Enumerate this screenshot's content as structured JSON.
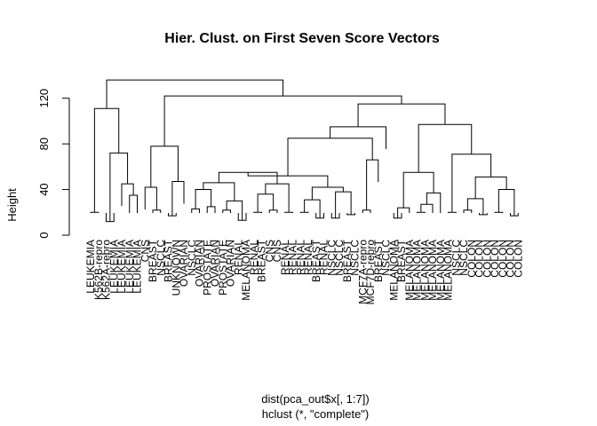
{
  "chart_data": {
    "type": "dendrogram",
    "title": "Hier. Clust. on First Seven Score Vectors",
    "ylabel": "Height",
    "xlabel_lines": [
      "dist(pca_out$x[, 1:7])",
      "hclust (*, \"complete\")"
    ],
    "ylim": [
      0,
      140
    ],
    "y_ticks": [
      0,
      40,
      80,
      120
    ],
    "leaves": [
      "LEUKEMIA",
      "K562B-repro",
      "K562A-repro",
      "LEUKEMIA",
      "LEUKEMIA",
      "LEUKEMIA",
      "LEUKEMIA",
      "CNS",
      "BREAST",
      "NSCLC",
      "BREAST",
      "UNKNOWN",
      "OVARIAN",
      "NSCLC",
      "OVARIAN",
      "PROSTATE",
      "OVARIAN",
      "PROSTATE",
      "OVARIAN",
      "RENAL",
      "MELANOMA",
      "RENAL",
      "BREAST",
      "CNS",
      "CNS",
      "RENAL",
      "RENAL",
      "RENAL",
      "RENAL",
      "BREAST",
      "RENAL",
      "NSCLC",
      "NSCLC",
      "BREAST",
      "NSCLC",
      "MCF7A-repro",
      "MCF7D-repro",
      "BREAST",
      "NSCLC",
      "MELANOMA",
      "BREAST",
      "MELANOMA",
      "MELANOMA",
      "MELANOMA",
      "MELANOMA",
      "MELANOMA",
      "MELANOMA",
      "NSCLC",
      "NSCLC",
      "COLON",
      "COLON",
      "COLON",
      "COLON",
      "COLON",
      "COLON",
      "COLON"
    ],
    "merges": [
      {
        "a": {
          "leaf": 0
        },
        "b": {
          "leaf": 1
        },
        "h": 20
      },
      {
        "a": {
          "leaf": 2
        },
        "b": {
          "leaf": 3
        },
        "h": 12
      },
      {
        "a": {
          "leaf": 5
        },
        "b": {
          "leaf": 6
        },
        "h": 35
      },
      {
        "a": {
          "leaf": 4
        },
        "b": {
          "node": 2
        },
        "h": 45
      },
      {
        "a": {
          "node": 1
        },
        "b": {
          "node": 3
        },
        "h": 72
      },
      {
        "a": {
          "node": 0
        },
        "b": {
          "node": 4
        },
        "h": 111
      },
      {
        "a": {
          "leaf": 8
        },
        "b": {
          "leaf": 9
        },
        "h": 22
      },
      {
        "a": {
          "leaf": 7
        },
        "b": {
          "node": 6
        },
        "h": 42
      },
      {
        "a": {
          "leaf": 10
        },
        "b": {
          "leaf": 11
        },
        "h": 17
      },
      {
        "a": {
          "leaf": 12
        },
        "b": {
          "node": 8
        },
        "h": 47
      },
      {
        "a": {
          "node": 7
        },
        "b": {
          "node": 9
        },
        "h": 78
      },
      {
        "a": {
          "leaf": 13
        },
        "b": {
          "leaf": 14
        },
        "h": 23
      },
      {
        "a": {
          "leaf": 15
        },
        "b": {
          "leaf": 16
        },
        "h": 25
      },
      {
        "a": {
          "node": 11
        },
        "b": {
          "node": 12
        },
        "h": 40
      },
      {
        "a": {
          "leaf": 17
        },
        "b": {
          "leaf": 18
        },
        "h": 22
      },
      {
        "a": {
          "leaf": 19
        },
        "b": {
          "leaf": 20
        },
        "h": 13
      },
      {
        "a": {
          "node": 14
        },
        "b": {
          "node": 15
        },
        "h": 30
      },
      {
        "a": {
          "node": 13
        },
        "b": {
          "node": 16
        },
        "h": 46
      },
      {
        "a": {
          "leaf": 21
        },
        "b": {
          "leaf": 22
        },
        "h": 20
      },
      {
        "a": {
          "leaf": 23
        },
        "b": {
          "leaf": 24
        },
        "h": 22
      },
      {
        "a": {
          "node": 18
        },
        "b": {
          "node": 19
        },
        "h": 36
      },
      {
        "a": {
          "leaf": 25
        },
        "b": {
          "leaf": 26
        },
        "h": 20
      },
      {
        "a": {
          "node": 20
        },
        "b": {
          "node": 21
        },
        "h": 45
      },
      {
        "a": {
          "node": 17
        },
        "b": {
          "node": 22
        },
        "h": 55
      },
      {
        "a": {
          "leaf": 27
        },
        "b": {
          "leaf": 28
        },
        "h": 20
      },
      {
        "a": {
          "leaf": 29
        },
        "b": {
          "leaf": 30
        },
        "h": 15
      },
      {
        "a": {
          "node": 24
        },
        "b": {
          "node": 25
        },
        "h": 31
      },
      {
        "a": {
          "leaf": 31
        },
        "b": {
          "leaf": 32
        },
        "h": 15
      },
      {
        "a": {
          "leaf": 33
        },
        "b": {
          "leaf": 34
        },
        "h": 18
      },
      {
        "a": {
          "node": 27
        },
        "b": {
          "node": 28
        },
        "h": 38
      },
      {
        "a": {
          "node": 26
        },
        "b": {
          "node": 29
        },
        "h": 42
      },
      {
        "a": {
          "node": 23
        },
        "b": {
          "node": 30
        },
        "h": 52
      },
      {
        "a": {
          "leaf": 35
        },
        "b": {
          "leaf": 36
        },
        "h": 22
      },
      {
        "a": {
          "leaf": 37
        },
        "b": {
          "node": 32
        },
        "h": 66
      },
      {
        "a": {
          "node": 31
        },
        "b": {
          "node": 33
        },
        "h": 85
      },
      {
        "a": {
          "node": 34
        },
        "b": {
          "leaf": 38
        },
        "h": 95
      },
      {
        "a": {
          "leaf": 39
        },
        "b": {
          "leaf": 40
        },
        "h": 15
      },
      {
        "a": {
          "node": 36
        },
        "b": {
          "leaf": 41
        },
        "h": 24
      },
      {
        "a": {
          "leaf": 42
        },
        "b": {
          "leaf": 43
        },
        "h": 20
      },
      {
        "a": {
          "node": 38
        },
        "b": {
          "leaf": 44
        },
        "h": 27
      },
      {
        "a": {
          "node": 39
        },
        "b": {
          "leaf": 45
        },
        "h": 37
      },
      {
        "a": {
          "node": 37
        },
        "b": {
          "node": 40
        },
        "h": 55
      },
      {
        "a": {
          "leaf": 46
        },
        "b": {
          "leaf": 47
        },
        "h": 20
      },
      {
        "a": {
          "leaf": 48
        },
        "b": {
          "leaf": 49
        },
        "h": 22
      },
      {
        "a": {
          "leaf": 50
        },
        "b": {
          "leaf": 51
        },
        "h": 18
      },
      {
        "a": {
          "node": 43
        },
        "b": {
          "node": 44
        },
        "h": 32
      },
      {
        "a": {
          "leaf": 52
        },
        "b": {
          "leaf": 53
        },
        "h": 20
      },
      {
        "a": {
          "leaf": 54
        },
        "b": {
          "leaf": 55
        },
        "h": 17
      },
      {
        "a": {
          "node": 46
        },
        "b": {
          "node": 47
        },
        "h": 40
      },
      {
        "a": {
          "node": 45
        },
        "b": {
          "node": 48
        },
        "h": 51
      },
      {
        "a": {
          "node": 42
        },
        "b": {
          "node": 49
        },
        "h": 71
      },
      {
        "a": {
          "node": 41
        },
        "b": {
          "node": 50
        },
        "h": 97
      },
      {
        "a": {
          "node": 35
        },
        "b": {
          "node": 51
        },
        "h": 115
      },
      {
        "a": {
          "node": 10
        },
        "b": {
          "node": 52
        },
        "h": 122
      },
      {
        "a": {
          "node": 5
        },
        "b": {
          "node": 53
        },
        "h": 136
      }
    ]
  }
}
